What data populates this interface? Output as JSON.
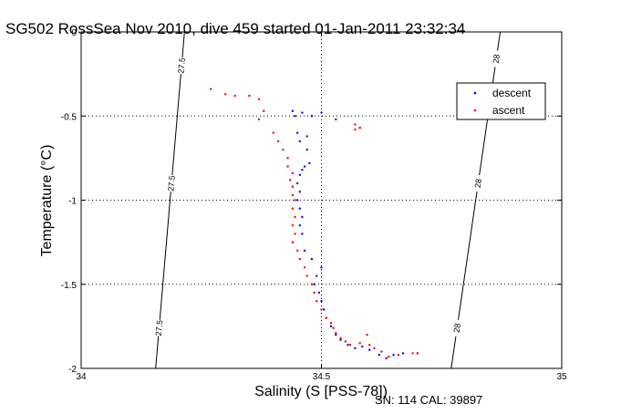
{
  "chart_data": {
    "type": "scatter",
    "title": "SG502 RossSea Nov 2010, dive 459 started 01-Jan-2011 23:32:34",
    "xlabel": "Salinity (S [PSS-78])",
    "ylabel": "Temperature (°C)",
    "xlim": [
      34,
      35
    ],
    "ylim": [
      -2,
      0
    ],
    "xticks": [
      34,
      34.5,
      35
    ],
    "xtick_labels": [
      "34",
      "34.5",
      "35"
    ],
    "yticks": [
      0,
      -0.5,
      -1,
      -1.5,
      -2
    ],
    "ytick_labels": [
      "0",
      "-0.5",
      "-1",
      "-1.5",
      "-2"
    ],
    "grid": true,
    "legend_position": "top-right",
    "footnote": "SN: 114  CAL: 39897",
    "contours": [
      {
        "label": "27.5",
        "points": [
          [
            34.215,
            0
          ],
          [
            34.155,
            -2
          ]
        ],
        "label_positions": [
          0.1,
          0.45,
          0.88
        ]
      },
      {
        "label": "28",
        "points": [
          [
            34.872,
            0
          ],
          [
            34.77,
            -2
          ]
        ],
        "label_positions": [
          0.08,
          0.45,
          0.88
        ]
      }
    ],
    "series": [
      {
        "name": "descent",
        "color": "#0000ff",
        "points": [
          [
            34.44,
            -0.47
          ],
          [
            34.445,
            -0.5
          ],
          [
            34.46,
            -0.48
          ],
          [
            34.48,
            -0.5
          ],
          [
            34.5,
            -0.48
          ],
          [
            34.53,
            -0.52
          ],
          [
            34.45,
            -0.6
          ],
          [
            34.47,
            -0.62
          ],
          [
            34.455,
            -0.65
          ],
          [
            34.47,
            -0.7
          ],
          [
            34.475,
            -0.78
          ],
          [
            34.465,
            -0.8
          ],
          [
            34.46,
            -0.82
          ],
          [
            34.455,
            -0.85
          ],
          [
            34.45,
            -0.9
          ],
          [
            34.455,
            -0.95
          ],
          [
            34.45,
            -1.0
          ],
          [
            34.455,
            -1.05
          ],
          [
            34.46,
            -1.1
          ],
          [
            34.455,
            -1.15
          ],
          [
            34.46,
            -1.2
          ],
          [
            34.465,
            -1.3
          ],
          [
            34.48,
            -1.35
          ],
          [
            34.5,
            -1.4
          ],
          [
            34.49,
            -1.45
          ],
          [
            34.485,
            -1.5
          ],
          [
            34.495,
            -1.55
          ],
          [
            34.5,
            -1.6
          ],
          [
            34.505,
            -1.65
          ],
          [
            34.51,
            -1.7
          ],
          [
            34.52,
            -1.75
          ],
          [
            34.53,
            -1.8
          ],
          [
            34.54,
            -1.83
          ],
          [
            34.555,
            -1.86
          ],
          [
            34.57,
            -1.88
          ],
          [
            34.585,
            -1.87
          ],
          [
            34.6,
            -1.89
          ],
          [
            34.62,
            -1.92
          ],
          [
            34.635,
            -1.94
          ],
          [
            34.65,
            -1.92
          ],
          [
            34.67,
            -1.91
          ],
          [
            34.7,
            -1.91
          ],
          [
            34.58,
            -0.57
          ]
        ]
      },
      {
        "name": "ascent",
        "color": "#ff0000",
        "points": [
          [
            34.27,
            -0.34
          ],
          [
            34.3,
            -0.37
          ],
          [
            34.32,
            -0.38
          ],
          [
            34.35,
            -0.38
          ],
          [
            34.37,
            -0.4
          ],
          [
            34.38,
            -0.47
          ],
          [
            34.37,
            -0.52
          ],
          [
            34.4,
            -0.6
          ],
          [
            34.41,
            -0.65
          ],
          [
            34.42,
            -0.7
          ],
          [
            34.43,
            -0.75
          ],
          [
            34.43,
            -0.8
          ],
          [
            34.44,
            -0.84
          ],
          [
            34.435,
            -0.88
          ],
          [
            34.44,
            -0.92
          ],
          [
            34.44,
            -0.97
          ],
          [
            34.445,
            -1.0
          ],
          [
            34.44,
            -1.05
          ],
          [
            34.445,
            -1.1
          ],
          [
            34.44,
            -1.15
          ],
          [
            34.445,
            -1.2
          ],
          [
            34.44,
            -1.25
          ],
          [
            34.45,
            -1.3
          ],
          [
            34.455,
            -1.35
          ],
          [
            34.465,
            -1.4
          ],
          [
            34.47,
            -1.45
          ],
          [
            34.48,
            -1.5
          ],
          [
            34.485,
            -1.55
          ],
          [
            34.49,
            -1.6
          ],
          [
            34.5,
            -1.65
          ],
          [
            34.51,
            -1.7
          ],
          [
            34.52,
            -1.73
          ],
          [
            34.525,
            -1.76
          ],
          [
            34.53,
            -1.79
          ],
          [
            34.54,
            -1.82
          ],
          [
            34.55,
            -1.84
          ],
          [
            34.56,
            -1.86
          ],
          [
            34.58,
            -1.85
          ],
          [
            34.595,
            -1.8
          ],
          [
            34.6,
            -1.86
          ],
          [
            34.61,
            -1.88
          ],
          [
            34.625,
            -1.9
          ],
          [
            34.64,
            -1.93
          ],
          [
            34.66,
            -1.92
          ],
          [
            34.69,
            -1.91
          ],
          [
            34.7,
            -1.91
          ],
          [
            34.57,
            -0.58
          ],
          [
            34.57,
            -0.55
          ],
          [
            34.58,
            -0.57
          ]
        ]
      }
    ]
  }
}
